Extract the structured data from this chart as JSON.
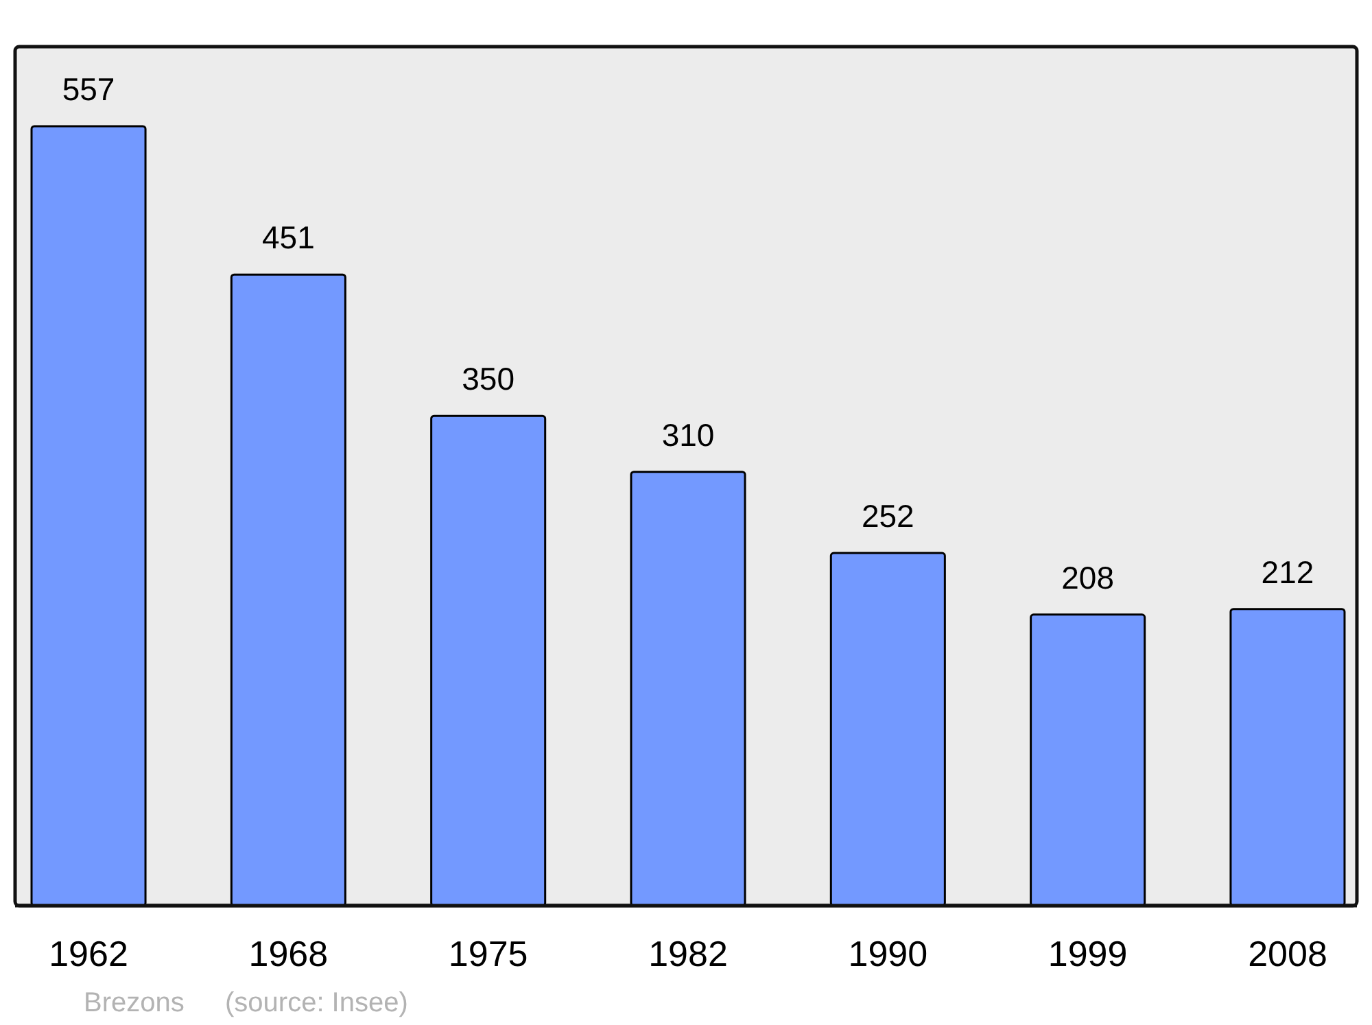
{
  "chart_data": {
    "type": "bar",
    "categories": [
      "1962",
      "1968",
      "1975",
      "1982",
      "1990",
      "1999",
      "2008"
    ],
    "values": [
      557,
      451,
      350,
      310,
      252,
      208,
      212
    ],
    "color": "#7399ff",
    "data_labels": true,
    "annotations": [
      "Brezons",
      "(source: Insee)"
    ]
  }
}
